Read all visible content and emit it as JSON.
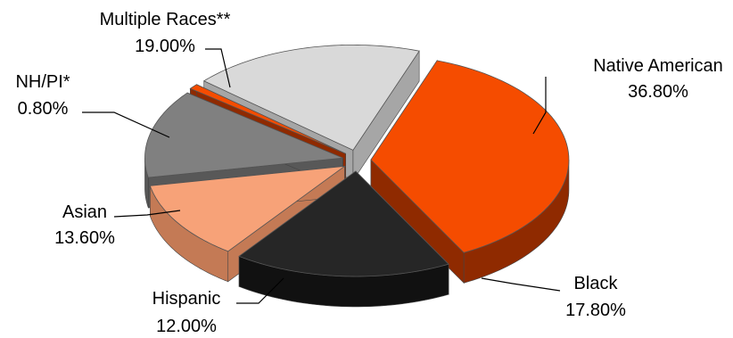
{
  "chart_data": {
    "type": "pie",
    "title": "",
    "style": "3d-exploded",
    "slices": [
      {
        "label": "Native American",
        "value_label": "36.80%",
        "value": 36.8,
        "color": "#f54c00",
        "dark": "#8f2a00"
      },
      {
        "label": "Black",
        "value_label": "17.80%",
        "value": 17.8,
        "color": "#262626",
        "dark": "#111111"
      },
      {
        "label": "Hispanic",
        "value_label": "12.00%",
        "value": 12.0,
        "color": "#f7a278",
        "dark": "#c47a55"
      },
      {
        "label": "Asian",
        "value_label": "13.60%",
        "value": 13.6,
        "color": "#808080",
        "dark": "#585858"
      },
      {
        "label": "NH/PI*",
        "value_label": "0.80%",
        "value": 0.8,
        "color": "#f54c00",
        "dark": "#8f2a00"
      },
      {
        "label": "Multiple Races**",
        "value_label": "19.00%",
        "value": 19.0,
        "color": "#d9d9d9",
        "dark": "#a6a6a6"
      }
    ]
  }
}
